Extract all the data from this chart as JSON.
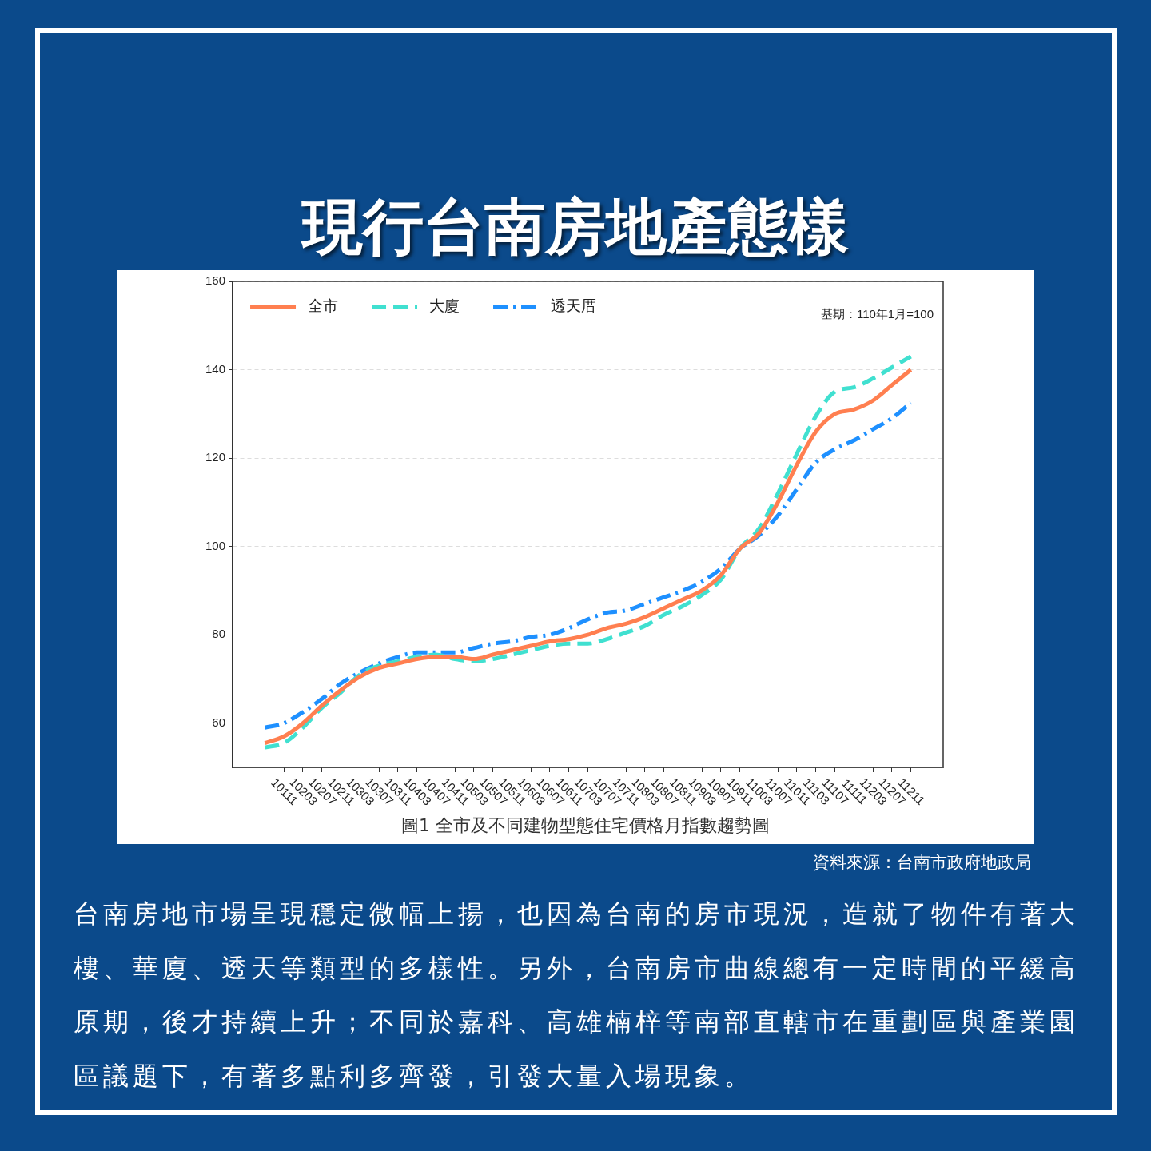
{
  "chart_data": {
    "type": "line",
    "title": "現行台南房地產態樣",
    "categories": [
      null,
      "10111",
      "10203",
      "10207",
      "10211",
      "10303",
      "10307",
      "10311",
      "10403",
      "10407",
      "10411",
      "10503",
      "10507",
      "10511",
      "10603",
      "10607",
      "10611",
      "10703",
      "10707",
      "10711",
      "10803",
      "10807",
      "10811",
      "10903",
      "10907",
      "10911",
      "11003",
      "11007",
      "11011",
      "11103",
      "11107",
      "11111",
      "11203",
      "11207",
      "11211"
    ],
    "series": [
      {
        "name": "全市",
        "color": "#ff7f50",
        "line_style": "solid",
        "values": [
          55.5,
          57,
          60,
          64,
          67.5,
          70.5,
          72.5,
          73.5,
          74.5,
          75,
          75,
          74.5,
          75.5,
          76.5,
          77.5,
          78.5,
          79,
          80,
          81.5,
          82.5,
          84,
          86,
          88,
          90,
          93.5,
          99.5,
          103,
          110,
          118.5,
          126,
          130,
          131,
          133,
          136.5,
          140
        ]
      },
      {
        "name": "大廈",
        "color": "#40e0d0",
        "line_style": "dashed",
        "values": [
          54.5,
          55.5,
          59,
          63.5,
          67,
          71,
          73,
          74,
          75,
          75.5,
          74.5,
          74,
          74.5,
          75.5,
          76.5,
          77.5,
          78,
          78,
          79,
          80.5,
          82,
          84.5,
          86.5,
          89,
          92.5,
          99.5,
          104,
          112,
          121,
          129.5,
          135,
          136,
          138,
          140.5,
          143
        ]
      },
      {
        "name": "透天厝",
        "color": "#1e90ff",
        "line_style": "dashdot",
        "values": [
          59,
          60,
          62.5,
          65.5,
          69,
          71.5,
          73.5,
          75,
          76,
          76,
          76,
          77,
          78,
          78.5,
          79.5,
          80,
          81.5,
          83.5,
          85,
          85.5,
          87,
          88.5,
          90,
          92,
          95,
          99.5,
          102.5,
          107,
          113,
          119,
          122,
          124,
          126.5,
          129,
          132.5
        ]
      }
    ],
    "ylim": [
      50,
      160
    ],
    "yticks": [
      60,
      80,
      100,
      120,
      140,
      160
    ],
    "grid": "y",
    "legend": "top left",
    "marker": "none",
    "annotations": [
      "基期：110年1月=100",
      "圖1 全市及不同建物型態住宅價格月指數趨勢圖",
      "資料來源：台南市政府地政局",
      "台南房地市場呈現穩定微幅上揚，也因為台南的房市現況，造就了物件有著大樓、華廈、透天等類型的多樣性。另外，台南房市曲線總有一定時間的平緩高原期，後才持續上升；不同於嘉科、高雄楠梓等南部直轄市在重劃區與產業園區議題下，有著多點利多齊發，引發大量入場現象。"
    ]
  }
}
